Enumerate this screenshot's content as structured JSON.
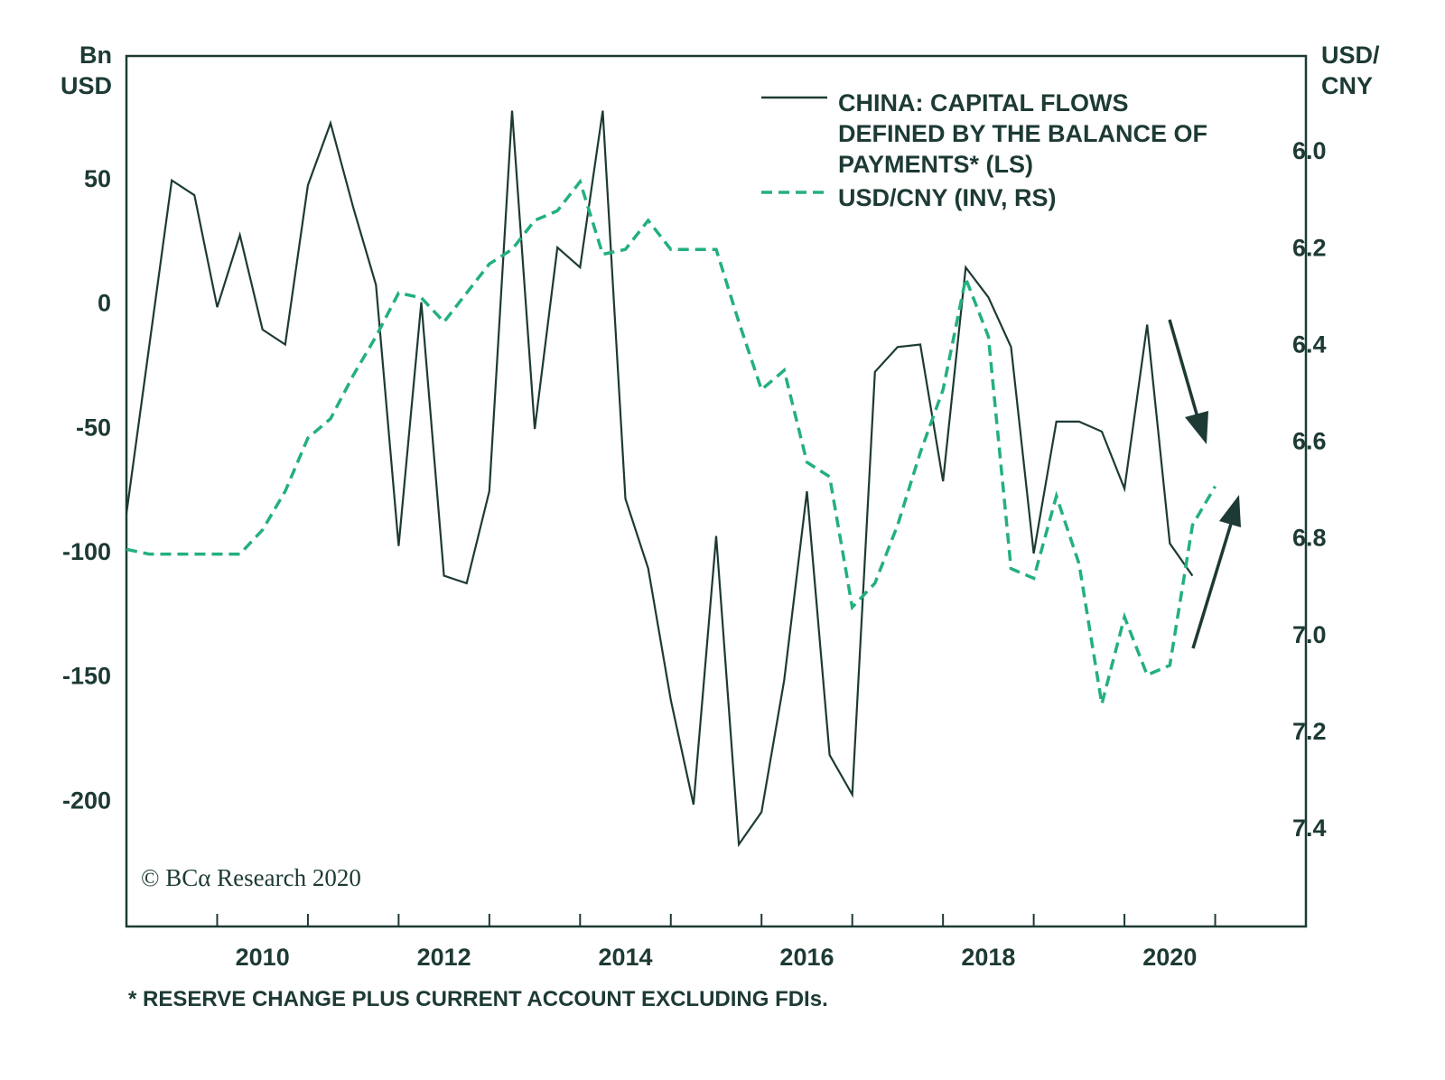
{
  "chart_data": {
    "type": "line",
    "ylabel": "Bn USD",
    "y2label": "USD/CNY",
    "footnote": "* RESERVE CHANGE PLUS CURRENT ACCOUNT EXCLUDING FDIs.",
    "source": "© BCα Research 2020",
    "xlim": [
      2009,
      2022
    ],
    "xticks": [
      2010,
      2011,
      2012,
      2013,
      2014,
      2015,
      2016,
      2017,
      2018,
      2019,
      2020,
      2021
    ],
    "xtick_labels": [
      2010,
      2012,
      2014,
      2016,
      2018,
      2020
    ],
    "ylim": [
      -250,
      100
    ],
    "yticks": [
      -200,
      -150,
      -100,
      -50,
      0,
      50
    ],
    "y2lim": [
      5.8,
      7.6
    ],
    "y2_inverted": true,
    "y2ticks": [
      {
        "value": 6.0,
        "label": "6.0"
      },
      6.2,
      6.4,
      6.6,
      6.8,
      {
        "value": 7.0,
        "label": "7.0"
      },
      7.2,
      7.4
    ],
    "grid": false,
    "legend": "top-right",
    "series": [
      {
        "name": "CHINA: CAPITAL FLOWS DEFINED BY THE BALANCE OF PAYMENTS* (LS)",
        "color": "#1d3a35",
        "dash": false,
        "x": [
          2009,
          2009.25,
          2009.5,
          2009.75,
          2010,
          2010.25,
          2010.5,
          2010.75,
          2011,
          2011.25,
          2011.5,
          2011.75,
          2012,
          2012.25,
          2012.5,
          2012.75,
          2013,
          2013.25,
          2013.5,
          2013.75,
          2014,
          2014.25,
          2014.5,
          2014.75,
          2015,
          2015.25,
          2015.5,
          2015.75,
          2016,
          2016.25,
          2016.5,
          2016.75,
          2017,
          2017.25,
          2017.5,
          2017.75,
          2018,
          2018.25,
          2018.5,
          2018.75,
          2019,
          2019.25,
          2019.5,
          2019.75,
          2020,
          2020.25,
          2020.5,
          2020.75
        ],
        "values": [
          -84,
          -17,
          50,
          44,
          -1,
          28,
          -10,
          -16,
          48,
          73,
          39,
          8,
          -97,
          1,
          -109,
          -112,
          -75,
          78,
          -50,
          23,
          15,
          78,
          -78,
          -106,
          -159,
          -201,
          -93,
          -217,
          -204,
          -151,
          -75,
          -181,
          -197,
          -27,
          -17,
          -16,
          -71,
          15,
          3,
          -17,
          -100,
          -47,
          -47,
          -51,
          -74,
          -8,
          -96,
          -109
        ]
      },
      {
        "name": "USD/CNY (INV, RS)",
        "color": "#23b07e",
        "dash": true,
        "axis": "y2",
        "x": [
          2009,
          2009.25,
          2009.5,
          2009.75,
          2010,
          2010.25,
          2010.5,
          2010.75,
          2011,
          2011.25,
          2011.5,
          2011.75,
          2012,
          2012.25,
          2012.5,
          2012.75,
          2013,
          2013.25,
          2013.5,
          2013.75,
          2014,
          2014.25,
          2014.5,
          2014.75,
          2015,
          2015.25,
          2015.5,
          2015.75,
          2016,
          2016.25,
          2016.5,
          2016.75,
          2017,
          2017.25,
          2017.5,
          2017.75,
          2018,
          2018.25,
          2018.5,
          2018.75,
          2019,
          2019.25,
          2019.5,
          2019.75,
          2020,
          2020.25,
          2020.5,
          2020.75,
          2021
        ],
        "values": [
          6.82,
          6.83,
          6.83,
          6.83,
          6.83,
          6.83,
          6.78,
          6.7,
          6.59,
          6.55,
          6.46,
          6.38,
          6.29,
          6.3,
          6.35,
          6.29,
          6.23,
          6.2,
          6.14,
          6.12,
          6.06,
          6.21,
          6.2,
          6.14,
          6.2,
          6.2,
          6.2,
          6.35,
          6.49,
          6.45,
          6.64,
          6.67,
          6.94,
          6.89,
          6.77,
          6.62,
          6.49,
          6.26,
          6.38,
          6.86,
          6.88,
          6.71,
          6.85,
          7.14,
          6.96,
          7.08,
          7.06,
          6.77,
          6.69
        ]
      }
    ]
  }
}
